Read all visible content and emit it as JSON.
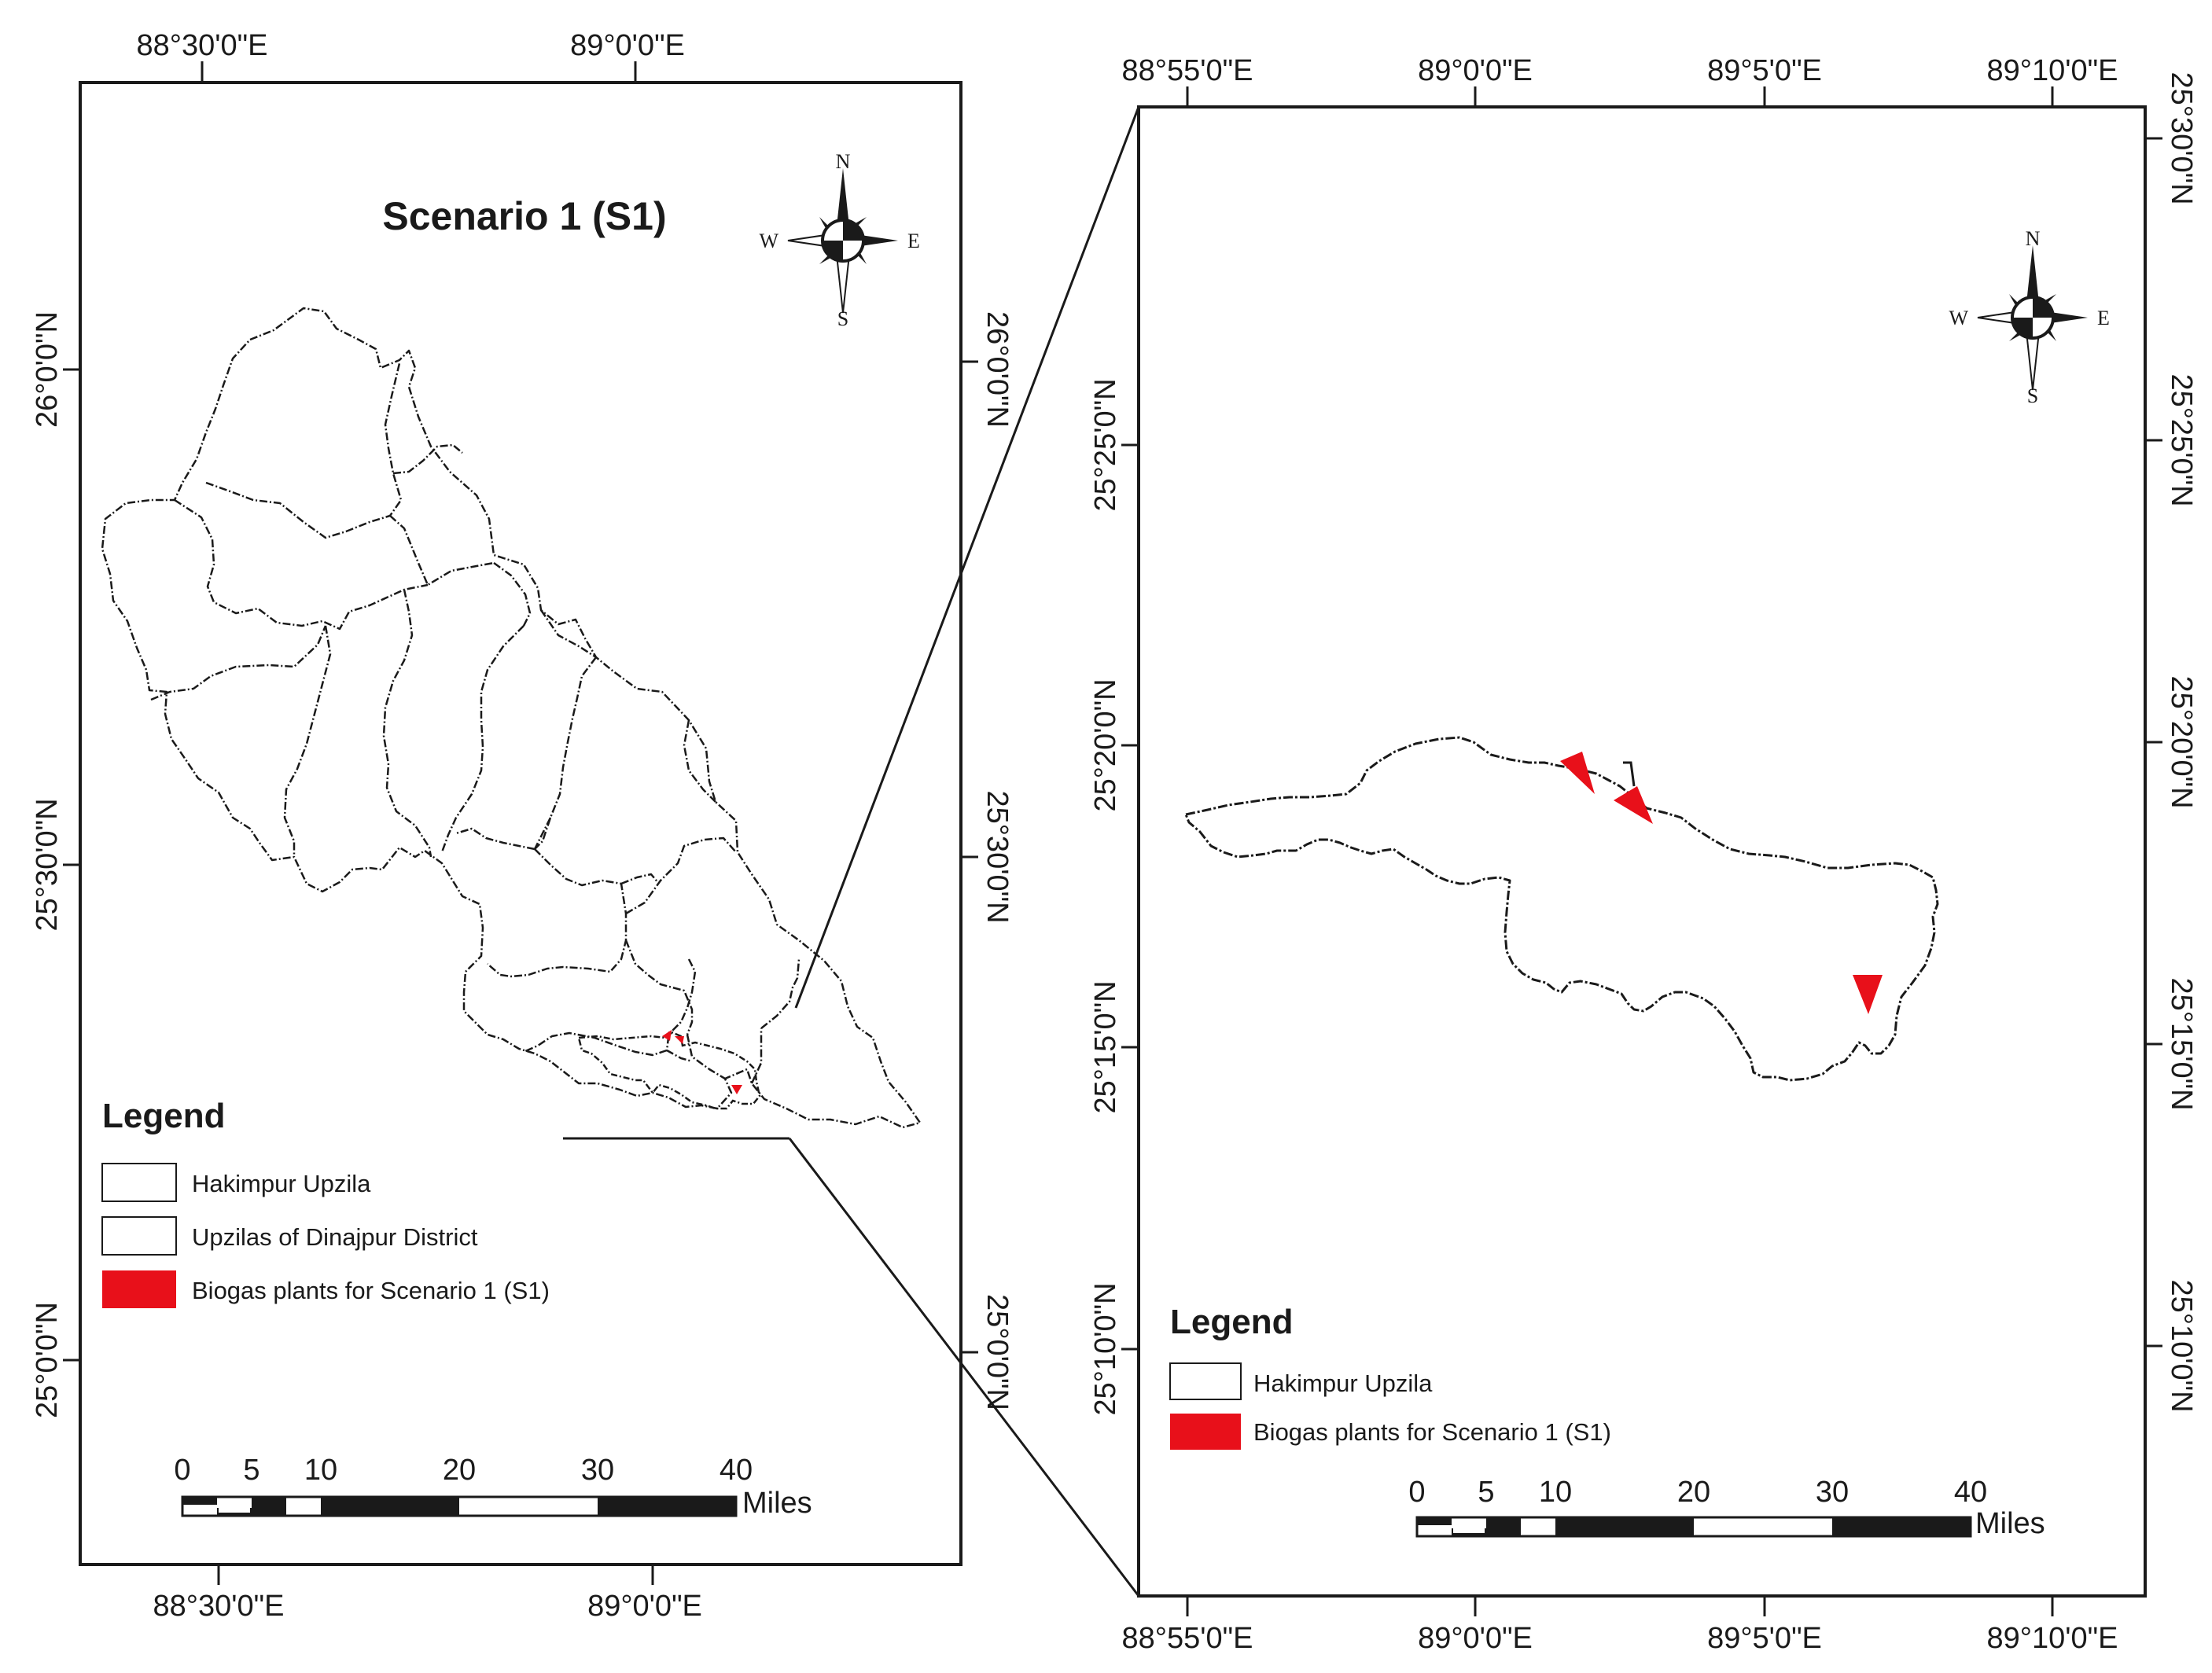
{
  "colors": {
    "frame": "#1a1a1a",
    "boundary": "#1a1a1a",
    "biogas": "#e8101a",
    "background": "#ffffff"
  },
  "left_map": {
    "title": "Scenario 1 (S1)",
    "top_ticks": [
      "88°30'0\"E",
      "89°0'0\"E"
    ],
    "bottom_ticks": [
      "88°30'0\"E",
      "89°0'0\"E"
    ],
    "left_ticks": [
      "26°0'0\"N",
      "25°30'0\"N",
      "25°0'0\"N"
    ],
    "right_ticks": [
      "26°0'0\"N",
      "25°30'0\"N",
      "25°0'0\"N"
    ],
    "compass": {
      "n": "N",
      "s": "S",
      "e": "E",
      "w": "W",
      "icon": "north-arrow-compass-icon"
    },
    "legend": {
      "title": "Legend",
      "items": [
        {
          "label": "Hakimpur Upzila",
          "swatch": "outline"
        },
        {
          "label": "Upzilas of Dinajpur District",
          "swatch": "outline"
        },
        {
          "label": "Biogas plants for Scenario 1 (S1)",
          "swatch": "red-fill"
        }
      ]
    },
    "scale": {
      "numbers": [
        "0",
        "5",
        "10",
        "20",
        "30",
        "40"
      ],
      "unit": "Miles"
    }
  },
  "right_map": {
    "top_ticks": [
      "88°55'0\"E",
      "89°0'0\"E",
      "89°5'0\"E",
      "89°10'0\"E"
    ],
    "bottom_ticks": [
      "88°55'0\"E",
      "89°0'0\"E",
      "89°5'0\"E",
      "89°10'0\"E"
    ],
    "left_ticks": [
      "25°25'0\"N",
      "25°20'0\"N",
      "25°15'0\"N",
      "25°10'0\"N"
    ],
    "right_ticks": [
      "25°30'0\"N",
      "25°25'0\"N",
      "25°20'0\"N",
      "25°15'0\"N",
      "25°10'0\"N"
    ],
    "compass": {
      "n": "N",
      "s": "S",
      "e": "E",
      "w": "W",
      "icon": "north-arrow-compass-icon"
    },
    "legend": {
      "title": "Legend",
      "items": [
        {
          "label": "Hakimpur Upzila",
          "swatch": "outline"
        },
        {
          "label": "Biogas plants for Scenario 1 (S1)",
          "swatch": "red-fill"
        }
      ]
    },
    "scale": {
      "numbers": [
        "0",
        "5",
        "10",
        "20",
        "30",
        "40"
      ],
      "unit": "Miles"
    }
  }
}
